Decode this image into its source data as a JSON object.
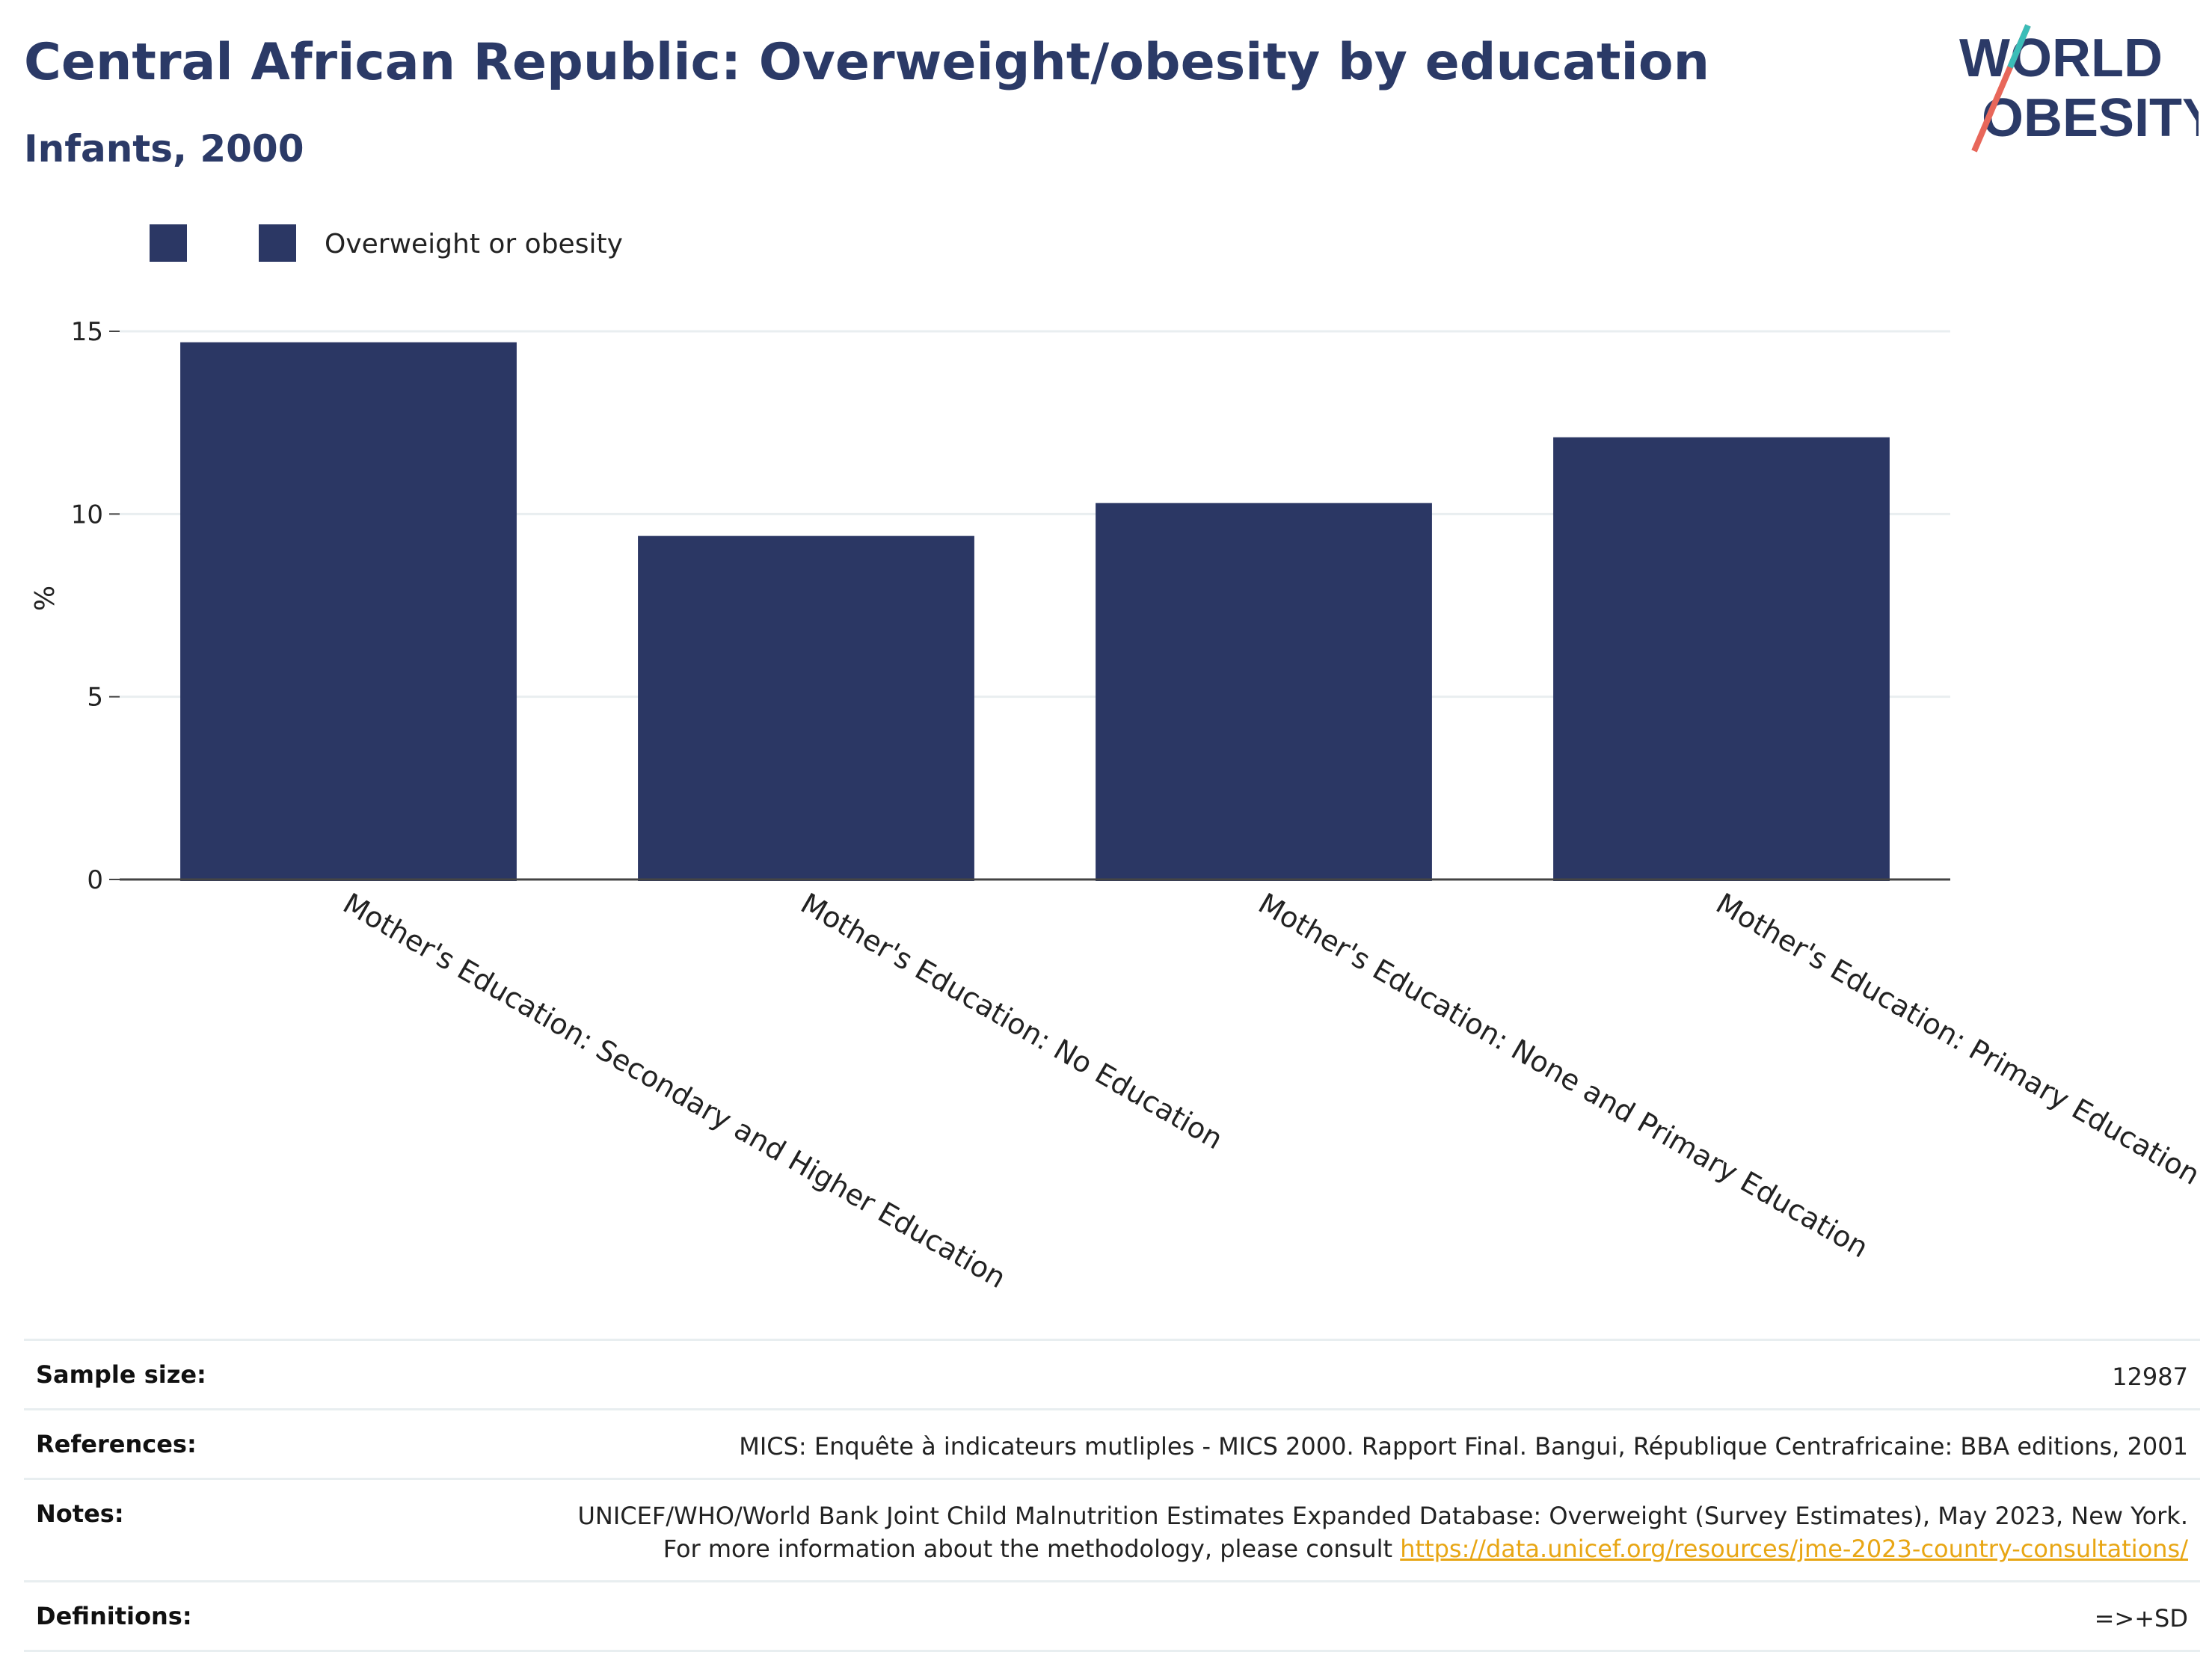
{
  "header": {
    "title": "Central African Republic: Overweight/obesity by education",
    "subtitle": "Infants, 2000"
  },
  "logo": {
    "line1": "WORLD",
    "line2": "OBESITY"
  },
  "colors": {
    "bar": "#2b3764",
    "title": "#2b3a67",
    "link": "#e8a614",
    "accent_teal": "#3bbdb8",
    "accent_red": "#e8675a"
  },
  "chart_data": {
    "type": "bar",
    "categories": [
      "Mother's Education: Secondary and Higher Education",
      "Mother's Education: No Education",
      "Mother's Education: None and Primary Education",
      "Mother's Education: Primary Education"
    ],
    "series": [
      {
        "name": "Overweight or obesity",
        "values": [
          14.7,
          9.4,
          10.3,
          12.1
        ]
      }
    ],
    "legend": [
      "",
      "Overweight or obesity"
    ],
    "ylabel": "%",
    "yticks": [
      0,
      5,
      10,
      15
    ],
    "ylim": [
      0,
      15
    ],
    "grid": true,
    "legend_position": "top-left"
  },
  "info": {
    "rows": [
      {
        "label": "Sample size:",
        "value": "12987"
      },
      {
        "label": "References:",
        "value": "MICS: Enquête à indicateurs mutliples - MICS 2000. Rapport Final. Bangui, République Centrafricaine: BBA editions, 2001"
      },
      {
        "label": "Notes:",
        "value": "UNICEF/WHO/World Bank Joint Child Malnutrition Estimates Expanded Database: Overweight (Survey Estimates), May 2023, New York. For more information about the methodology, please consult ",
        "link": "https://data.unicef.org/resources/jme-2023-country-consultations/"
      },
      {
        "label": "Definitions:",
        "value": "=>+SD"
      }
    ]
  }
}
